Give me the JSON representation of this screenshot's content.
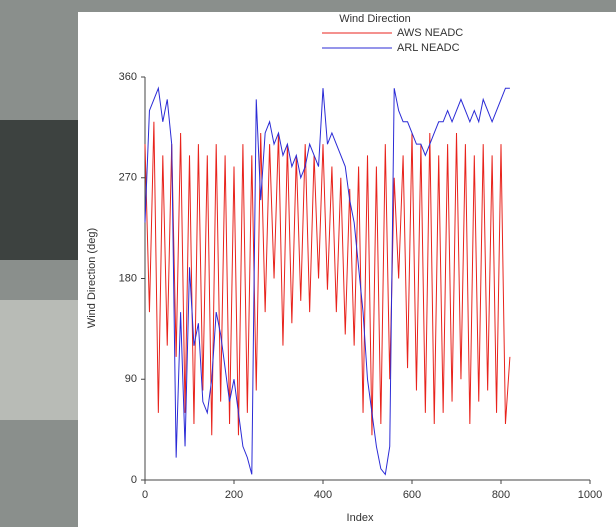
{
  "chart_data": {
    "type": "line",
    "title": "Wind Direction",
    "xlabel": "Index",
    "ylabel": "Wind Direction (deg)",
    "x": [
      0,
      10,
      20,
      30,
      40,
      50,
      60,
      70,
      80,
      90,
      100,
      110,
      120,
      130,
      140,
      150,
      160,
      170,
      180,
      190,
      200,
      210,
      220,
      230,
      240,
      250,
      260,
      270,
      280,
      290,
      300,
      310,
      320,
      330,
      340,
      350,
      360,
      370,
      380,
      390,
      400,
      410,
      420,
      430,
      440,
      450,
      460,
      470,
      480,
      490,
      500,
      510,
      520,
      530,
      540,
      550,
      560,
      570,
      580,
      590,
      600,
      610,
      620,
      630,
      640,
      650,
      660,
      670,
      680,
      690,
      700,
      710,
      720,
      730,
      740,
      750,
      760,
      770,
      780,
      790,
      800,
      810,
      820
    ],
    "series": [
      {
        "name": "AWS NEADC",
        "color": "#e8231c",
        "values": [
          300,
          150,
          320,
          60,
          290,
          120,
          300,
          110,
          310,
          60,
          290,
          50,
          300,
          80,
          290,
          40,
          300,
          70,
          290,
          50,
          280,
          40,
          300,
          60,
          290,
          80,
          310,
          150,
          300,
          180,
          310,
          120,
          300,
          140,
          290,
          160,
          300,
          150,
          290,
          180,
          300,
          170,
          280,
          150,
          270,
          130,
          260,
          120,
          280,
          60,
          290,
          40,
          280,
          50,
          300,
          90,
          270,
          180,
          290,
          100,
          310,
          80,
          300,
          60,
          310,
          50,
          290,
          60,
          300,
          70,
          310,
          90,
          300,
          50,
          290,
          70,
          300,
          80,
          290,
          60,
          300,
          50,
          110
        ]
      },
      {
        "name": "ARL NEADC",
        "color": "#2b2bd6",
        "values": [
          230,
          330,
          340,
          350,
          320,
          340,
          300,
          20,
          150,
          30,
          190,
          120,
          140,
          70,
          60,
          90,
          150,
          130,
          100,
          70,
          90,
          60,
          30,
          20,
          5,
          340,
          250,
          310,
          320,
          300,
          310,
          290,
          300,
          280,
          290,
          270,
          280,
          300,
          290,
          280,
          350,
          300,
          310,
          300,
          290,
          280,
          250,
          230,
          190,
          150,
          90,
          60,
          30,
          10,
          5,
          30,
          350,
          330,
          320,
          320,
          310,
          300,
          300,
          290,
          300,
          310,
          320,
          320,
          330,
          320,
          330,
          340,
          330,
          320,
          330,
          320,
          340,
          330,
          320,
          330,
          340,
          350,
          350
        ]
      }
    ],
    "xlim": [
      0,
      1000
    ],
    "xticks": [
      0,
      200,
      400,
      600,
      800,
      1000
    ],
    "ylim": [
      0,
      360
    ],
    "yticks": [
      0,
      90,
      180,
      270,
      360
    ]
  }
}
